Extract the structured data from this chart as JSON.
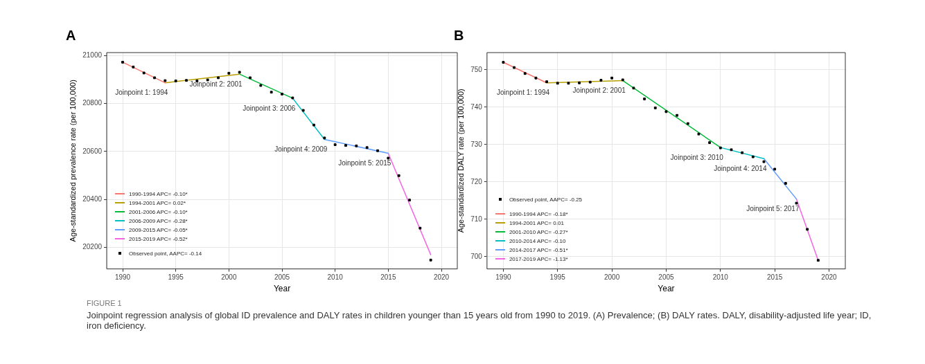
{
  "chart_data": [
    {
      "type": "line",
      "title": "A",
      "xlabel": "Year",
      "ylabel": "Age-standardized prevalence rate (per 100,000)",
      "xlim": [
        1988.5,
        2021.5
      ],
      "xticks": [
        1990,
        1995,
        2000,
        2005,
        2010,
        2015,
        2020
      ],
      "ylim": [
        20110,
        21012
      ],
      "yticks": [
        20200,
        20400,
        20600,
        20800,
        21000
      ],
      "grid": true,
      "legend": "bottom left",
      "series": [
        {
          "name": "1990-1994 APC= -0.10*",
          "color": "#f8766d",
          "x": [
            1990,
            1994
          ],
          "values": [
            20972,
            20886
          ]
        },
        {
          "name": "1994-2001 APC= 0.02*",
          "color": "#b79f00",
          "x": [
            1994,
            2001
          ],
          "values": [
            20886,
            20922
          ]
        },
        {
          "name": "2001-2006 APC= -0.10*",
          "color": "#00ba38",
          "x": [
            2001,
            2006
          ],
          "values": [
            20922,
            20822
          ]
        },
        {
          "name": "2006-2009 APC= -0.28*",
          "color": "#00bfc4",
          "x": [
            2006,
            2009
          ],
          "values": [
            20822,
            20650
          ]
        },
        {
          "name": "2009-2015 APC= -0.05*",
          "color": "#619cff",
          "x": [
            2009,
            2015
          ],
          "values": [
            20650,
            20592
          ]
        },
        {
          "name": "2015-2019 APC= -0.52*",
          "color": "#f564e3",
          "x": [
            2015,
            2019
          ],
          "values": [
            20592,
            20169
          ]
        },
        {
          "name": "Observed point, AAPC= -0.14",
          "type": "scatter",
          "marker": "square",
          "color": "#000000",
          "x": [
            1990,
            1991,
            1992,
            1993,
            1994,
            1995,
            1996,
            1997,
            1998,
            1999,
            2000,
            2001,
            2002,
            2003,
            2004,
            2005,
            2006,
            2007,
            2008,
            2009,
            2010,
            2011,
            2012,
            2013,
            2014,
            2015,
            2016,
            2017,
            2018,
            2019
          ],
          "values": [
            20972,
            20952,
            20927,
            20907,
            20895,
            20894,
            20896,
            20894,
            20898,
            20907,
            20926,
            20930,
            20907,
            20875,
            20847,
            20839,
            20823,
            20771,
            20710,
            20656,
            20628,
            20625,
            20623,
            20616,
            20603,
            20572,
            20499,
            20397,
            20280,
            20147
          ]
        }
      ],
      "annotations": [
        {
          "text": "Joinpoint 1: 1994",
          "x": 1994,
          "y": 20886
        },
        {
          "text": "Joinpoint 2: 2001",
          "x": 2001,
          "y": 20922
        },
        {
          "text": "Joinpoint 3: 2006",
          "x": 2006,
          "y": 20822
        },
        {
          "text": "Joinpoint 4: 2009",
          "x": 2009,
          "y": 20650
        },
        {
          "text": "Joinpoint 5: 2015",
          "x": 2015,
          "y": 20592
        },
        "FIGURE 1",
        "Joinpoint regression analysis of global ID prevalence and DALY rates in children younger than 15 years old from 1990 to 2019. (A) Prevalence; (B) DALY rates. DALY, disability-adjusted life year; ID, iron deficiency."
      ]
    },
    {
      "type": "line",
      "title": "B",
      "xlabel": "Year",
      "ylabel": "Age-standardized DALY rate (per 100,000)",
      "xlim": [
        1988.5,
        2021.5
      ],
      "xticks": [
        1990,
        1995,
        2000,
        2005,
        2010,
        2015,
        2020
      ],
      "ylim": [
        696.7,
        754.6
      ],
      "yticks": [
        700,
        710,
        720,
        730,
        740,
        750
      ],
      "grid": true,
      "legend": "bottom left",
      "series": [
        {
          "name": "Observed point, AAPC= -0.25",
          "type": "scatter",
          "marker": "square",
          "color": "#000000",
          "x": [
            1990,
            1991,
            1992,
            1993,
            1994,
            1995,
            1996,
            1997,
            1998,
            1999,
            2000,
            2001,
            2002,
            2003,
            2004,
            2005,
            2006,
            2007,
            2008,
            2009,
            2010,
            2011,
            2012,
            2013,
            2014,
            2015,
            2016,
            2017,
            2018,
            2019
          ],
          "values": [
            752.0,
            750.6,
            749.0,
            747.8,
            746.8,
            746.4,
            746.4,
            746.5,
            746.7,
            747.2,
            747.8,
            747.3,
            745.1,
            742.2,
            739.8,
            738.8,
            737.8,
            735.6,
            732.8,
            730.5,
            729.1,
            728.6,
            727.8,
            726.7,
            725.4,
            723.4,
            719.6,
            714.3,
            707.3,
            699.0
          ]
        },
        {
          "name": "1990-1994 APC= -0.18*",
          "color": "#f8766d",
          "x": [
            1990,
            1994
          ],
          "values": [
            752.0,
            746.5
          ]
        },
        {
          "name": "1994-2001 APC= 0.01",
          "color": "#b79f00",
          "x": [
            1994,
            2001
          ],
          "values": [
            746.5,
            747.1
          ]
        },
        {
          "name": "2001-2010 APC= -0.27*",
          "color": "#00ba38",
          "x": [
            2001,
            2010
          ],
          "values": [
            747.1,
            729.2
          ]
        },
        {
          "name": "2010-2014 APC= -0.10",
          "color": "#00bfc4",
          "x": [
            2010,
            2014
          ],
          "values": [
            729.2,
            726.2
          ]
        },
        {
          "name": "2014-2017 APC= -0.51*",
          "color": "#619cff",
          "x": [
            2014,
            2017
          ],
          "values": [
            726.2,
            715.4
          ]
        },
        {
          "name": "2017-2019 APC= -1.13*",
          "color": "#f564e3",
          "x": [
            2017,
            2019
          ],
          "values": [
            715.4,
            699.0
          ]
        }
      ],
      "annotations": [
        {
          "text": "Joinpoint 1: 1994",
          "x": 1994,
          "y": 746.5
        },
        {
          "text": "Joinpoint 2: 2001",
          "x": 2001,
          "y": 747.1
        },
        {
          "text": "Joinpoint 3: 2010",
          "x": 2010,
          "y": 729.2
        },
        {
          "text": "Joinpoint 4: 2014",
          "x": 2014,
          "y": 726.2
        },
        {
          "text": "Joinpoint 5: 2017",
          "x": 2017,
          "y": 715.4
        }
      ]
    }
  ]
}
